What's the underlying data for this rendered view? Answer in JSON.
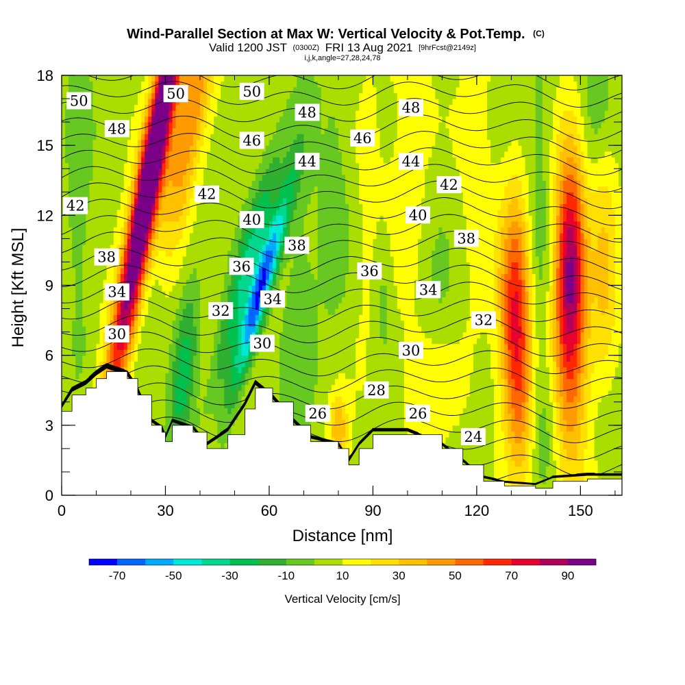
{
  "chart_data": {
    "type": "heatmap",
    "title": "Wind-Parallel Section at Max W: Vertical Velocity & Pot.Temp.",
    "title_mark": "(C)",
    "subtitle_prefix": "Valid 1200 JST",
    "subtitle_utc": "(0300Z)",
    "subtitle_date": "FRI 13 Aug 2021",
    "subtitle_fcst": "[9hrFcst@2149z]",
    "subtitle2": "i,j,k,angle=27,28,24,78",
    "xlabel": "Distance [nm]",
    "ylabel": "Height [Kft MSL]",
    "xlim": [
      0,
      162
    ],
    "ylim": [
      0,
      18
    ],
    "x_ticks": [
      0,
      30,
      60,
      90,
      120,
      150
    ],
    "y_ticks": [
      0,
      3,
      6,
      9,
      12,
      15,
      18
    ],
    "colorbar": {
      "label": "Vertical Velocity [cm/s]",
      "min": -80,
      "max": 100,
      "ticks": [
        -70,
        -50,
        -30,
        -10,
        10,
        30,
        50,
        70,
        90
      ],
      "colors": [
        "#0000ff",
        "#0066ff",
        "#00aaff",
        "#00e8d8",
        "#00d890",
        "#00c050",
        "#30b030",
        "#66c820",
        "#aadd00",
        "#ffff00",
        "#ffe000",
        "#ffc000",
        "#ff9a00",
        "#ff6800",
        "#ff2800",
        "#e80030",
        "#b0005a",
        "#7a0088"
      ]
    },
    "theta_contour_labels": [
      {
        "x": 5,
        "y": 16.9,
        "text": "50"
      },
      {
        "x": 33,
        "y": 17.2,
        "text": "50"
      },
      {
        "x": 55,
        "y": 17.3,
        "text": "50"
      },
      {
        "x": 16,
        "y": 15.7,
        "text": "48"
      },
      {
        "x": 71,
        "y": 16.4,
        "text": "48"
      },
      {
        "x": 101,
        "y": 16.6,
        "text": "48"
      },
      {
        "x": 55,
        "y": 15.2,
        "text": "46"
      },
      {
        "x": 87,
        "y": 15.3,
        "text": "46"
      },
      {
        "x": 71,
        "y": 14.3,
        "text": "44"
      },
      {
        "x": 101,
        "y": 14.3,
        "text": "44"
      },
      {
        "x": 112,
        "y": 13.3,
        "text": "42"
      },
      {
        "x": 4,
        "y": 12.4,
        "text": "42"
      },
      {
        "x": 42,
        "y": 12.9,
        "text": "42"
      },
      {
        "x": 55,
        "y": 11.8,
        "text": "40"
      },
      {
        "x": 103,
        "y": 12.0,
        "text": "40"
      },
      {
        "x": 13,
        "y": 10.2,
        "text": "38"
      },
      {
        "x": 68,
        "y": 10.7,
        "text": "38"
      },
      {
        "x": 117,
        "y": 11.0,
        "text": "38"
      },
      {
        "x": 52,
        "y": 9.8,
        "text": "36"
      },
      {
        "x": 89,
        "y": 9.6,
        "text": "36"
      },
      {
        "x": 16,
        "y": 8.7,
        "text": "34"
      },
      {
        "x": 61,
        "y": 8.4,
        "text": "34"
      },
      {
        "x": 106,
        "y": 8.8,
        "text": "34"
      },
      {
        "x": 46,
        "y": 7.9,
        "text": "32"
      },
      {
        "x": 122,
        "y": 7.5,
        "text": "32"
      },
      {
        "x": 16,
        "y": 6.9,
        "text": "30"
      },
      {
        "x": 58,
        "y": 6.5,
        "text": "30"
      },
      {
        "x": 101,
        "y": 6.2,
        "text": "30"
      },
      {
        "x": 91,
        "y": 4.5,
        "text": "28"
      },
      {
        "x": 74,
        "y": 3.5,
        "text": "26"
      },
      {
        "x": 103,
        "y": 3.5,
        "text": "26"
      },
      {
        "x": 119,
        "y": 2.5,
        "text": "24"
      }
    ],
    "terrain": [
      [
        0,
        3.6
      ],
      [
        3,
        4.3
      ],
      [
        7,
        4.6
      ],
      [
        10,
        5.0
      ],
      [
        13,
        5.3
      ],
      [
        19,
        5.0
      ],
      [
        22,
        4.3
      ],
      [
        26,
        3.0
      ],
      [
        29,
        2.7
      ],
      [
        30,
        2.3
      ],
      [
        32,
        3.0
      ],
      [
        38,
        2.7
      ],
      [
        42,
        2.0
      ],
      [
        48,
        2.6
      ],
      [
        53,
        3.7
      ],
      [
        56,
        4.6
      ],
      [
        61,
        4.0
      ],
      [
        67,
        3.0
      ],
      [
        72,
        2.3
      ],
      [
        80,
        2.0
      ],
      [
        83,
        1.3
      ],
      [
        86,
        2.0
      ],
      [
        90,
        2.6
      ],
      [
        100,
        2.6
      ],
      [
        110,
        2.0
      ],
      [
        116,
        1.3
      ],
      [
        122,
        0.6
      ],
      [
        128,
        0.4
      ],
      [
        137,
        0.3
      ],
      [
        142,
        0.6
      ],
      [
        152,
        0.7
      ],
      [
        162,
        0.7
      ]
    ],
    "w_features": [
      {
        "x": 5,
        "y": 15.0,
        "sx": 2.5,
        "sy": 6,
        "a": -12,
        "tilt": 0.0
      },
      {
        "x": 25,
        "y": 8.0,
        "sx": 3.0,
        "sy": 5,
        "a": -20,
        "tilt": 0.18
      },
      {
        "x": 27,
        "y": 15.0,
        "sx": 2.3,
        "sy": 6,
        "a": 100,
        "tilt": 0.2
      },
      {
        "x": 22,
        "y": 10.0,
        "sx": 4.0,
        "sy": 6,
        "a": 40,
        "tilt": 0.2
      },
      {
        "x": 37,
        "y": 16.0,
        "sx": 3.5,
        "sy": 4.5,
        "a": 45,
        "tilt": 0.2
      },
      {
        "x": 35,
        "y": 5.0,
        "sx": 2.5,
        "sy": 3,
        "a": -28,
        "tilt": 0.1
      },
      {
        "x": 42,
        "y": 4.0,
        "sx": 2.5,
        "sy": 2.5,
        "a": 10,
        "tilt": 0.1
      },
      {
        "x": 47,
        "y": 6.5,
        "sx": 2.0,
        "sy": 5,
        "a": -10,
        "tilt": 0.3
      },
      {
        "x": 58,
        "y": 9.0,
        "sx": 2.2,
        "sy": 3,
        "a": -78,
        "tilt": 0.3
      },
      {
        "x": 56,
        "y": 11.0,
        "sx": 3.0,
        "sy": 4,
        "a": -30,
        "tilt": 0.3
      },
      {
        "x": 63,
        "y": 14.0,
        "sx": 3.0,
        "sy": 5,
        "a": 12,
        "tilt": 0.1
      },
      {
        "x": 68,
        "y": 7.0,
        "sx": 4.0,
        "sy": 6,
        "a": -10,
        "tilt": 0.0
      },
      {
        "x": 80,
        "y": 13.0,
        "sx": 4.0,
        "sy": 5,
        "a": -10,
        "tilt": 0.0
      },
      {
        "x": 80,
        "y": 2.7,
        "sx": 2.0,
        "sy": 1.2,
        "a": 35,
        "tilt": 0.0
      },
      {
        "x": 87,
        "y": 12.0,
        "sx": 4.0,
        "sy": 6,
        "a": 8,
        "tilt": 0.0
      },
      {
        "x": 93,
        "y": 8.5,
        "sx": 2.0,
        "sy": 2,
        "a": -12,
        "tilt": 0.0
      },
      {
        "x": 101,
        "y": 14.0,
        "sx": 6.0,
        "sy": 6,
        "a": 10,
        "tilt": 0.0
      },
      {
        "x": 108,
        "y": 8.0,
        "sx": 4.0,
        "sy": 4,
        "a": -10,
        "tilt": 0.0
      },
      {
        "x": 107,
        "y": 4.5,
        "sx": 5.0,
        "sy": 2,
        "a": 18,
        "tilt": 0.0
      },
      {
        "x": 120,
        "y": 14.0,
        "sx": 4.0,
        "sy": 6,
        "a": 10,
        "tilt": 0.0
      },
      {
        "x": 131,
        "y": 8.0,
        "sx": 3.2,
        "sy": 3.5,
        "a": 60,
        "tilt": 0.0
      },
      {
        "x": 133,
        "y": 4.0,
        "sx": 3.0,
        "sy": 3,
        "a": 25,
        "tilt": 0.0
      },
      {
        "x": 138,
        "y": 11.0,
        "sx": 2.5,
        "sy": 6,
        "a": -12,
        "tilt": 0.0
      },
      {
        "x": 147,
        "y": 10.0,
        "sx": 3.0,
        "sy": 3.5,
        "a": 70,
        "tilt": 0.0
      },
      {
        "x": 147,
        "y": 5.0,
        "sx": 4.0,
        "sy": 5,
        "a": 30,
        "tilt": 0.0
      },
      {
        "x": 157,
        "y": 9.0,
        "sx": 3.0,
        "sy": 5,
        "a": 25,
        "tilt": 0.0
      },
      {
        "x": 140,
        "y": 3.0,
        "sx": 3.0,
        "sy": 2,
        "a": -12,
        "tilt": 0.0
      },
      {
        "x": 157,
        "y": 3.0,
        "sx": 3.0,
        "sy": 2,
        "a": -12,
        "tilt": 0.0
      },
      {
        "x": 155,
        "y": 17.0,
        "sx": 3.0,
        "sy": 2,
        "a": -15,
        "tilt": 0.0
      }
    ]
  }
}
